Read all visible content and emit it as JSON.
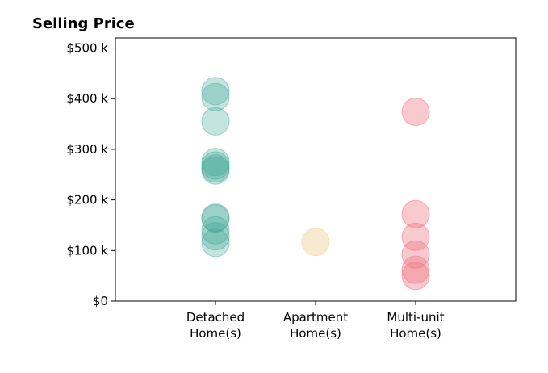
{
  "chart_data": {
    "type": "scatter",
    "title": "Selling Price",
    "xlabel": "",
    "ylabel": "",
    "categories": [
      [
        "Detached",
        "Home(s)"
      ],
      [
        "Apartment",
        "Home(s)"
      ],
      [
        "Multi-unit",
        "Home(s)"
      ]
    ],
    "ylim": [
      0,
      520000
    ],
    "xlim": [
      -1,
      3
    ],
    "yticks": [
      0,
      100000,
      200000,
      300000,
      400000,
      500000
    ],
    "ytick_labels": [
      "$0",
      "$100 k",
      "$200 k",
      "$300 k",
      "$400 k",
      "$500 k"
    ],
    "grid": false,
    "legend": "none",
    "series": [
      {
        "category_index": 0,
        "color": "#3BA796",
        "opacity": 0.3,
        "values": [
          415000,
          403000,
          355000,
          275000,
          268000,
          262000,
          258000,
          165000,
          163000,
          140000,
          128000,
          115000
        ]
      },
      {
        "category_index": 1,
        "color": "#F2D9A6",
        "opacity": 0.55,
        "values": [
          117000
        ]
      },
      {
        "category_index": 2,
        "color": "#EE7785",
        "opacity": 0.4,
        "values": [
          374000,
          172000,
          127000,
          92000,
          62000,
          50000
        ]
      }
    ]
  }
}
